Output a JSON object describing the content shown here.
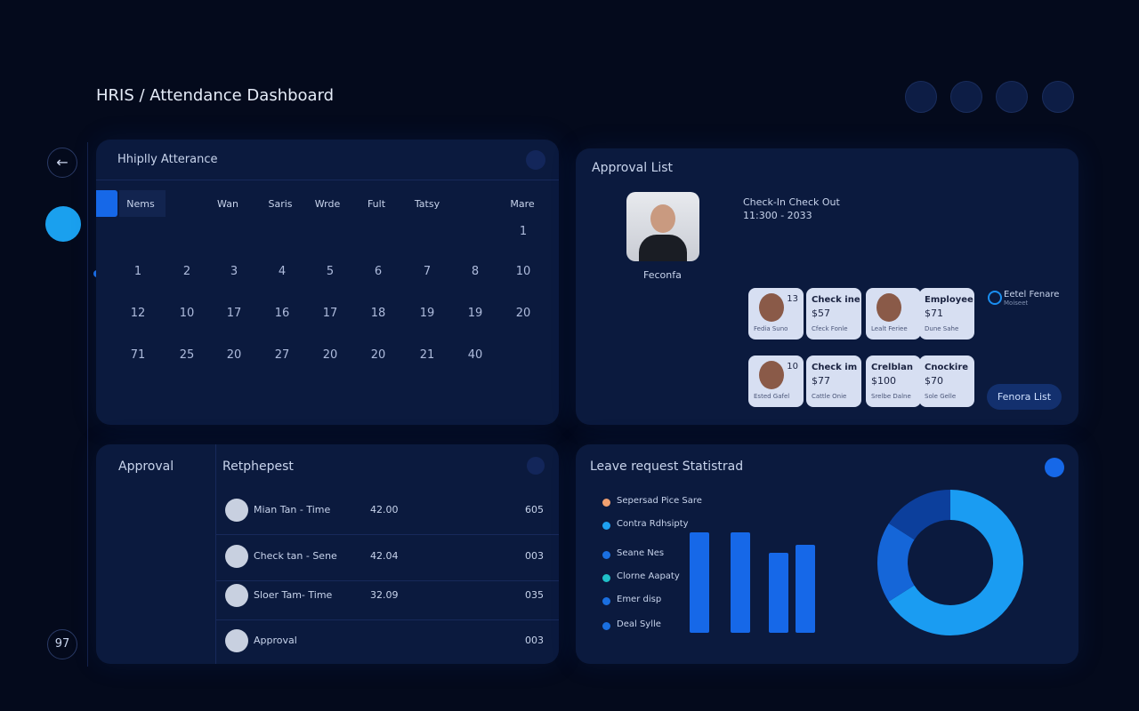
{
  "header": {
    "title": "HRIS / Attendance Dashboard"
  },
  "sidebar": {
    "badge": "97"
  },
  "calendar": {
    "title": "Hhiplly Atterance",
    "headers": [
      "Nems",
      "Wan",
      "Saris",
      "Wrde",
      "Fult",
      "Tatsy",
      "Mare"
    ],
    "rows": [
      [
        "1"
      ],
      [
        "1",
        "2",
        "3",
        "4",
        "5",
        "6",
        "7",
        "8",
        "10"
      ],
      [
        "12",
        "10",
        "17",
        "16",
        "17",
        "18",
        "19",
        "19",
        "20"
      ],
      [
        "71",
        "25",
        "20",
        "27",
        "20",
        "20",
        "21",
        "40"
      ]
    ]
  },
  "approval_list": {
    "title": "Approval List",
    "profile_name": "Feconfa",
    "check_title": "Check-In Check Out",
    "check_time": "11:300 - 2033",
    "cards": [
      {
        "kind": "avatar",
        "badge": "13",
        "caption": "Fedia Suno"
      },
      {
        "kind": "text",
        "heading": "Check ine",
        "amount": "$57",
        "caption": "Cfeck Fonle"
      },
      {
        "kind": "avatar",
        "caption": "Lealt Feriee"
      },
      {
        "kind": "text",
        "heading": "Employee",
        "amount": "$71",
        "caption": "Dune Sahe"
      },
      {
        "kind": "avatar",
        "badge": "10",
        "caption": "Ested Gafel"
      },
      {
        "kind": "text",
        "heading": "Check im",
        "amount": "$77",
        "caption": "Cattle Onie"
      },
      {
        "kind": "text",
        "heading": "Crelblan",
        "amount": "$100",
        "caption": "Srelbe Dalne"
      },
      {
        "kind": "text",
        "heading": "Cnockire",
        "amount": "$70",
        "caption": "Sole Gelle"
      }
    ],
    "note_title": "Eetel Fenare",
    "note_sub": "Moiseet",
    "button": "Fenora List"
  },
  "approval": {
    "label": "Approval",
    "title": "Retphepest",
    "rows": [
      {
        "name": "Mian Tan - Time",
        "time": "42.00",
        "code": "605"
      },
      {
        "name": "Check tan - Sene",
        "time": "42.04",
        "code": "003"
      },
      {
        "name": "Sloer Tam- Time",
        "time": "32.09",
        "code": "035"
      },
      {
        "name": "Approval",
        "code": "003"
      }
    ]
  },
  "leave": {
    "title": "Leave request Statistrad",
    "legend": [
      {
        "name": "Sepersad Pice Sare",
        "color": "#f0a070"
      },
      {
        "name": "Contra Rdhsipty",
        "color": "#1ea0f0"
      },
      {
        "name": "Seane Nes",
        "color": "#1a6fe0"
      },
      {
        "name": "Clorne Aapaty",
        "color": "#20c0c8"
      },
      {
        "name": "Emer disp",
        "color": "#1a6fe0"
      },
      {
        "name": "Deal Sylle",
        "color": "#1a6fe0"
      }
    ],
    "bars": {
      "type": "bar",
      "color": "#1668e8",
      "values": [
        113,
        113,
        90,
        99
      ]
    },
    "donut": {
      "type": "pie",
      "values": [
        66,
        18,
        16
      ],
      "colors": [
        "#1a9cf2",
        "#1566d8",
        "#0c3f9c"
      ]
    }
  }
}
